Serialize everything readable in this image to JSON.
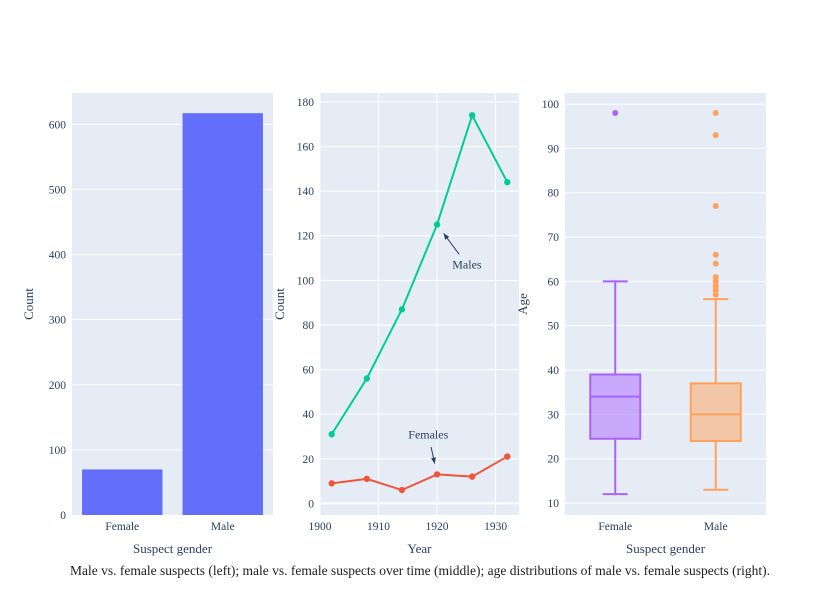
{
  "caption": "Male vs. female suspects (left); male vs. female suspects over time (middle); age distributions of male vs. female suspects (right).",
  "style": {
    "paper_bg": "#FFFFFF",
    "plot_bg": "#E5ECF6",
    "grid_color": "#FFFFFF",
    "text_color": "#2a3f5f",
    "caption_color": "#1d1d1d"
  },
  "chart_data": [
    {
      "type": "bar",
      "title": "",
      "xlabel": "Suspect gender",
      "ylabel": "Count",
      "categories": [
        "Female",
        "Male"
      ],
      "values": [
        70,
        617
      ],
      "bar_color": "#636EFA",
      "yticks": [
        0,
        100,
        200,
        300,
        400,
        500,
        600
      ],
      "ylim": [
        0,
        648
      ],
      "grid": true,
      "legend": false
    },
    {
      "type": "line",
      "title": "",
      "xlabel": "Year",
      "ylabel": "Count",
      "x": [
        1902,
        1908,
        1914,
        1920,
        1926,
        1932
      ],
      "series": [
        {
          "name": "Males",
          "color": "#00CC96",
          "values": [
            31,
            56,
            87,
            125,
            174,
            144
          ]
        },
        {
          "name": "Females",
          "color": "#EF553B",
          "values": [
            9,
            11,
            6,
            13,
            12,
            21
          ]
        }
      ],
      "xticks": [
        1900,
        1910,
        1920,
        1930
      ],
      "yticks": [
        0,
        20,
        40,
        60,
        80,
        100,
        120,
        140,
        160,
        180
      ],
      "xlim": [
        1900,
        1934
      ],
      "ylim": [
        -5.2,
        184
      ],
      "grid": true,
      "legend": false,
      "annotations": [
        {
          "text": "Males",
          "target": {
            "x": 1920,
            "y": 125
          },
          "label_at": {
            "x": 1925.1,
            "y": 107
          }
        },
        {
          "text": "Females",
          "target": {
            "x": 1920,
            "y": 13
          },
          "label_at": {
            "x": 1918.5,
            "y": 31
          }
        }
      ]
    },
    {
      "type": "box",
      "title": "",
      "xlabel": "Suspect gender",
      "ylabel": "Age",
      "categories": [
        "Female",
        "Male"
      ],
      "boxes": [
        {
          "name": "Female",
          "color": "#AB63FA",
          "whisker_low": 12,
          "q1": 24.5,
          "median": 34,
          "q3": 39,
          "whisker_high": 60,
          "outliers": [
            98
          ]
        },
        {
          "name": "Male",
          "color": "#FFA15A",
          "whisker_low": 13,
          "q1": 24,
          "median": 30,
          "q3": 37,
          "whisker_high": 56,
          "outliers": [
            57,
            58,
            58,
            59,
            59,
            60,
            60,
            61,
            64,
            66,
            77,
            93,
            98
          ]
        }
      ],
      "yticks": [
        10,
        20,
        30,
        40,
        50,
        60,
        70,
        80,
        90,
        100
      ],
      "ylim": [
        7.3,
        102.5
      ],
      "grid": true,
      "legend": false
    }
  ]
}
